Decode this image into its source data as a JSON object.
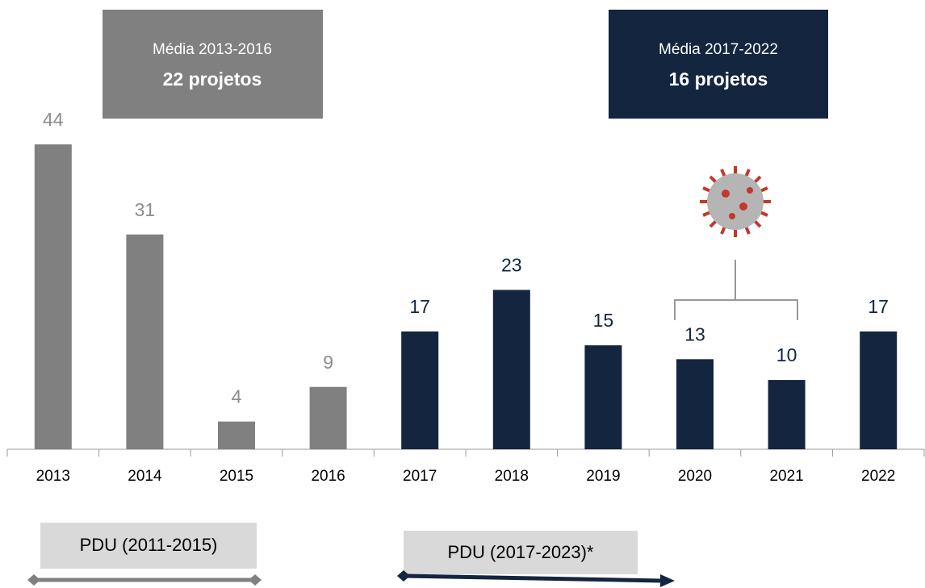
{
  "chart_data": {
    "type": "bar",
    "categories": [
      "2013",
      "2014",
      "2015",
      "2016",
      "2017",
      "2018",
      "2019",
      "2020",
      "2021",
      "2022"
    ],
    "values": [
      44,
      31,
      4,
      9,
      17,
      23,
      15,
      13,
      10,
      17
    ],
    "colors": [
      "#808080",
      "#808080",
      "#808080",
      "#808080",
      "#13253f",
      "#13253f",
      "#13253f",
      "#13253f",
      "#13253f",
      "#13253f"
    ],
    "annotations": [
      {
        "title": "Média 2013-2016",
        "text": "22 projetos"
      },
      {
        "title": "Média 2017-2022",
        "text": "16 projetos"
      }
    ],
    "periods": [
      "PDU (2011-2015)",
      "PDU (2017-2023)*"
    ]
  }
}
